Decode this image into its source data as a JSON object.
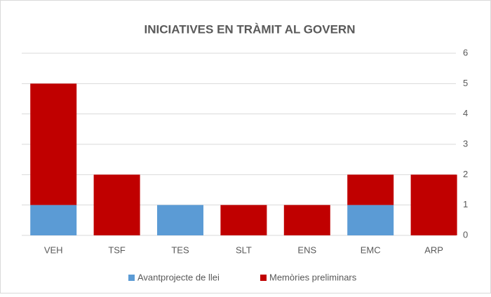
{
  "chart_data": {
    "type": "stacked_bar",
    "title": "INICIATIVES EN TRÀMIT AL GOVERN",
    "categories": [
      "VEH",
      "TSF",
      "TES",
      "SLT",
      "ENS",
      "EMC",
      "ARP"
    ],
    "series": [
      {
        "name": "Avantprojecte de llei",
        "color": "#5b9bd5",
        "values": [
          1,
          0,
          1,
          0,
          0,
          1,
          0
        ]
      },
      {
        "name": "Memòries preliminars",
        "color": "#c00000",
        "values": [
          4,
          2,
          0,
          1,
          1,
          1,
          2
        ]
      }
    ],
    "ylim": [
      0,
      6
    ],
    "yticks": [
      0,
      1,
      2,
      3,
      4,
      5,
      6
    ],
    "grid": true,
    "y_axis_side": "right",
    "legend": "bottom"
  }
}
